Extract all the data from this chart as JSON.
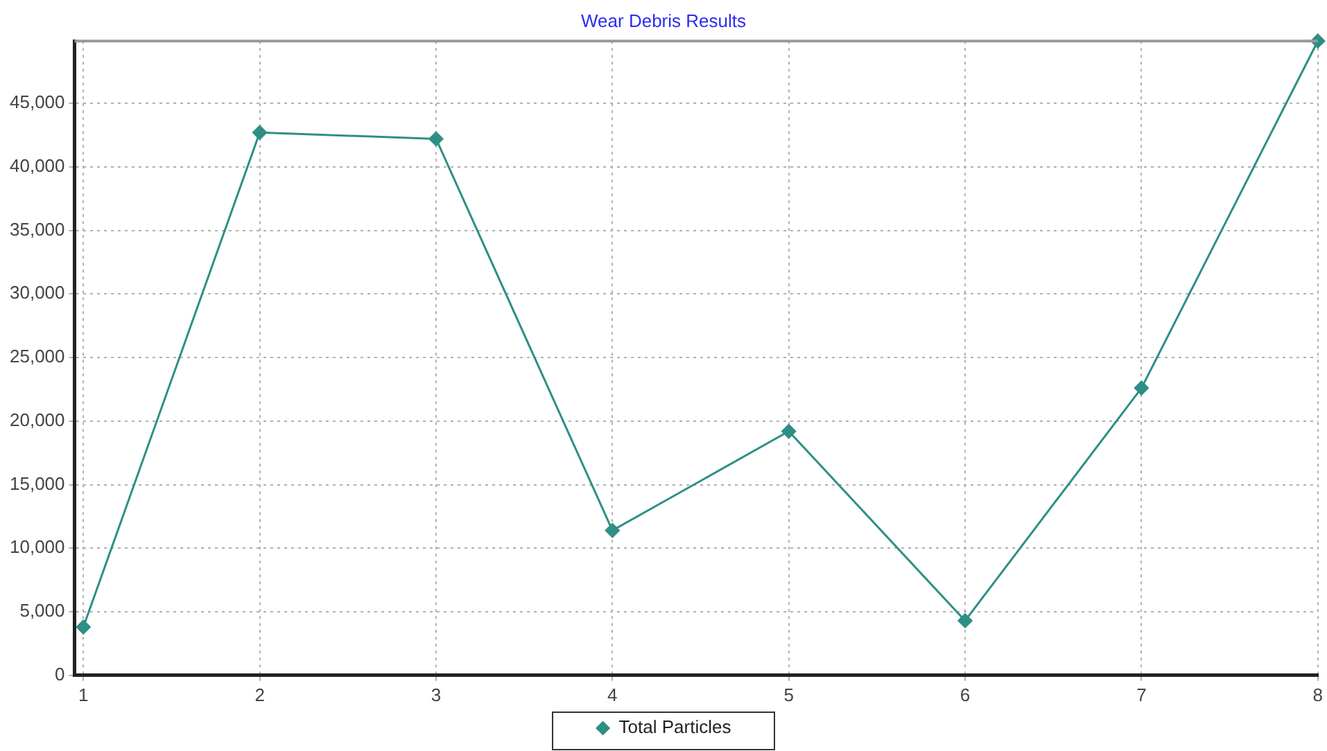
{
  "chart_data": {
    "type": "line",
    "title": "Wear Debris Results",
    "x": [
      1,
      2,
      3,
      4,
      5,
      6,
      7,
      8
    ],
    "series": [
      {
        "name": "Total Particles",
        "color": "#2e8f85",
        "values": [
          3800,
          42700,
          42200,
          11400,
          19200,
          4300,
          22600,
          49900
        ]
      }
    ],
    "xlim": [
      0.95,
      8
    ],
    "xticks": [
      1,
      2,
      3,
      4,
      5,
      6,
      7,
      8
    ],
    "ylim": [
      0,
      49900
    ],
    "yticks": [
      {
        "value": 0,
        "label": "0"
      },
      {
        "value": 5000,
        "label": "5,000"
      },
      {
        "value": 10000,
        "label": "10,000"
      },
      {
        "value": 15000,
        "label": "15,000"
      },
      {
        "value": 20000,
        "label": "20,000"
      },
      {
        "value": 25000,
        "label": "25,000"
      },
      {
        "value": 30000,
        "label": "30,000"
      },
      {
        "value": 35000,
        "label": "35,000"
      },
      {
        "value": 40000,
        "label": "40,000"
      },
      {
        "value": 45000,
        "label": "45,000"
      }
    ],
    "grid": true,
    "legend": "bottom",
    "marker": "diamond",
    "line_style": "solid"
  }
}
